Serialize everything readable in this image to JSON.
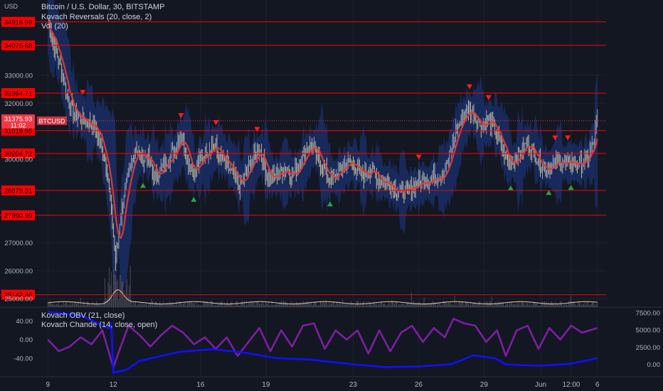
{
  "header": {
    "currency": "USD",
    "title": "Bitcoin / U.S. Dollar, 30, BITSTAMP",
    "indicators": [
      "Kovach Reversals (20, close, 2)",
      "Vol (20)"
    ],
    "lower_indicators": [
      "Kovach OBV (21, close)",
      "Kovach Chande (14, close, open)"
    ]
  },
  "colors": {
    "background": "#131722",
    "level_line": "#ff0000",
    "level_label_bg": "#ff0000",
    "ma_line": "#e53935",
    "band_fill": "#1e3a8a",
    "up_marker": "#26a641",
    "down_marker": "#ff1e1e",
    "price_tag": "#f23645",
    "obv_line": "#1010ff",
    "chande_line": "#7b1fa2",
    "axis_text": "#b2b5be"
  },
  "chart_data": {
    "type": "candlestick",
    "symbol": "BTCUSD",
    "last_price": "31375.93",
    "countdown": "11:02",
    "price_axis_ticks": [
      "33000.00",
      "32000.00",
      "30000.00",
      "27000.00",
      "26000.00",
      "25000.00"
    ],
    "price_ylim": [
      24700,
      35700
    ],
    "levels": [
      "34916.99",
      "34075.68",
      "32364.71",
      "31019.95",
      "30204.72",
      "28879.31",
      "27990.99",
      "25142.46"
    ],
    "x_ticks": [
      "9",
      "12",
      "16",
      "19",
      "23",
      "26",
      "29",
      "Jun",
      "12:00",
      "6"
    ],
    "price_series": [
      {
        "d": 0,
        "p": 34900
      },
      {
        "d": 0.3,
        "p": 34000
      },
      {
        "d": 0.6,
        "p": 33300
      },
      {
        "d": 0.9,
        "p": 32200
      },
      {
        "d": 1.2,
        "p": 31600
      },
      {
        "d": 1.5,
        "p": 31500
      },
      {
        "d": 1.8,
        "p": 31300
      },
      {
        "d": 2.1,
        "p": 31200
      },
      {
        "d": 2.4,
        "p": 30600
      },
      {
        "d": 2.7,
        "p": 29700
      },
      {
        "d": 3.0,
        "p": 27300
      },
      {
        "d": 3.1,
        "p": 26300
      },
      {
        "d": 3.3,
        "p": 27800
      },
      {
        "d": 3.5,
        "p": 28800
      },
      {
        "d": 3.7,
        "p": 29300
      },
      {
        "d": 4.0,
        "p": 30500
      },
      {
        "d": 4.3,
        "p": 30000
      },
      {
        "d": 4.6,
        "p": 30100
      },
      {
        "d": 4.9,
        "p": 29300
      },
      {
        "d": 5.2,
        "p": 29700
      },
      {
        "d": 5.5,
        "p": 30000
      },
      {
        "d": 5.8,
        "p": 30300
      },
      {
        "d": 6.1,
        "p": 31000
      },
      {
        "d": 6.4,
        "p": 30000
      },
      {
        "d": 6.7,
        "p": 29500
      },
      {
        "d": 7.0,
        "p": 30000
      },
      {
        "d": 7.3,
        "p": 30300
      },
      {
        "d": 7.6,
        "p": 30600
      },
      {
        "d": 7.9,
        "p": 30000
      },
      {
        "d": 8.2,
        "p": 29800
      },
      {
        "d": 8.5,
        "p": 29400
      },
      {
        "d": 8.8,
        "p": 29000
      },
      {
        "d": 9.1,
        "p": 29500
      },
      {
        "d": 9.4,
        "p": 30000
      },
      {
        "d": 9.7,
        "p": 30400
      },
      {
        "d": 10.0,
        "p": 29500
      },
      {
        "d": 10.3,
        "p": 29300
      },
      {
        "d": 10.6,
        "p": 29500
      },
      {
        "d": 10.9,
        "p": 29700
      },
      {
        "d": 11.2,
        "p": 29400
      },
      {
        "d": 11.5,
        "p": 29800
      },
      {
        "d": 11.8,
        "p": 30300
      },
      {
        "d": 12.1,
        "p": 30500
      },
      {
        "d": 12.4,
        "p": 30000
      },
      {
        "d": 12.7,
        "p": 29600
      },
      {
        "d": 13.0,
        "p": 29200
      },
      {
        "d": 13.3,
        "p": 29500
      },
      {
        "d": 13.6,
        "p": 29800
      },
      {
        "d": 13.9,
        "p": 29900
      },
      {
        "d": 14.2,
        "p": 29600
      },
      {
        "d": 14.5,
        "p": 29400
      },
      {
        "d": 14.8,
        "p": 29700
      },
      {
        "d": 15.1,
        "p": 29300
      },
      {
        "d": 15.4,
        "p": 29200
      },
      {
        "d": 15.7,
        "p": 29100
      },
      {
        "d": 16.0,
        "p": 28900
      },
      {
        "d": 16.3,
        "p": 28800
      },
      {
        "d": 16.6,
        "p": 28900
      },
      {
        "d": 16.9,
        "p": 29100
      },
      {
        "d": 17.2,
        "p": 29200
      },
      {
        "d": 17.5,
        "p": 29300
      },
      {
        "d": 17.8,
        "p": 29400
      },
      {
        "d": 18.1,
        "p": 29500
      },
      {
        "d": 18.4,
        "p": 30000
      },
      {
        "d": 18.7,
        "p": 31000
      },
      {
        "d": 19.0,
        "p": 31500
      },
      {
        "d": 19.3,
        "p": 31800
      },
      {
        "d": 19.6,
        "p": 31500
      },
      {
        "d": 19.9,
        "p": 31200
      },
      {
        "d": 20.2,
        "p": 31400
      },
      {
        "d": 20.5,
        "p": 31000
      },
      {
        "d": 20.8,
        "p": 30500
      },
      {
        "d": 21.1,
        "p": 29800
      },
      {
        "d": 21.4,
        "p": 30000
      },
      {
        "d": 21.7,
        "p": 30300
      },
      {
        "d": 22.0,
        "p": 30600
      },
      {
        "d": 22.3,
        "p": 30200
      },
      {
        "d": 22.6,
        "p": 29800
      },
      {
        "d": 22.9,
        "p": 29700
      },
      {
        "d": 23.2,
        "p": 29800
      },
      {
        "d": 23.5,
        "p": 29900
      },
      {
        "d": 23.8,
        "p": 29800
      },
      {
        "d": 24.1,
        "p": 29900
      },
      {
        "d": 24.4,
        "p": 29800
      },
      {
        "d": 24.7,
        "p": 30000
      },
      {
        "d": 25.0,
        "p": 30500
      },
      {
        "d": 25.2,
        "p": 31375
      }
    ],
    "obv_axis_ticks": [
      "7500.00",
      "5000.00",
      "2500.00",
      "0.00"
    ],
    "obv_ylim": [
      -1800,
      8300
    ],
    "obv_series": [
      {
        "d": 0,
        "v": 7600
      },
      {
        "d": 1.5,
        "v": 7100
      },
      {
        "d": 2.8,
        "v": 5200
      },
      {
        "d": 2.9,
        "v": 6000
      },
      {
        "d": 3.0,
        "v": -1200
      },
      {
        "d": 3.6,
        "v": -800
      },
      {
        "d": 4.2,
        "v": 500
      },
      {
        "d": 6.0,
        "v": 1800
      },
      {
        "d": 7.5,
        "v": 2200
      },
      {
        "d": 9.0,
        "v": 1700
      },
      {
        "d": 10.5,
        "v": 900
      },
      {
        "d": 12.0,
        "v": 700
      },
      {
        "d": 14.0,
        "v": 0
      },
      {
        "d": 15.5,
        "v": -400
      },
      {
        "d": 17.0,
        "v": -300
      },
      {
        "d": 18.5,
        "v": 0
      },
      {
        "d": 19.5,
        "v": 1300
      },
      {
        "d": 20.5,
        "v": 900
      },
      {
        "d": 21.0,
        "v": 0
      },
      {
        "d": 22.5,
        "v": -200
      },
      {
        "d": 24.0,
        "v": 100
      },
      {
        "d": 25.2,
        "v": 900
      }
    ],
    "chande_axis_ticks": [
      "40.00",
      "0.00",
      "-40.00"
    ],
    "chande_ylim": [
      -80,
      70
    ],
    "chande_series": [
      {
        "d": 0,
        "v": 0
      },
      {
        "d": 0.5,
        "v": -25
      },
      {
        "d": 1.0,
        "v": -15
      },
      {
        "d": 1.5,
        "v": 5
      },
      {
        "d": 2.0,
        "v": -10
      },
      {
        "d": 2.5,
        "v": 20
      },
      {
        "d": 3.0,
        "v": -60
      },
      {
        "d": 3.3,
        "v": -20
      },
      {
        "d": 3.7,
        "v": 30
      },
      {
        "d": 4.2,
        "v": 10
      },
      {
        "d": 4.7,
        "v": -15
      },
      {
        "d": 5.2,
        "v": 10
      },
      {
        "d": 5.7,
        "v": 30
      },
      {
        "d": 6.2,
        "v": 15
      },
      {
        "d": 6.7,
        "v": -10
      },
      {
        "d": 7.2,
        "v": 5
      },
      {
        "d": 7.7,
        "v": -20
      },
      {
        "d": 8.2,
        "v": 5
      },
      {
        "d": 8.7,
        "v": -35
      },
      {
        "d": 9.2,
        "v": -5
      },
      {
        "d": 9.7,
        "v": 25
      },
      {
        "d": 10.2,
        "v": -25
      },
      {
        "d": 10.7,
        "v": 20
      },
      {
        "d": 11.2,
        "v": -15
      },
      {
        "d": 11.7,
        "v": 30
      },
      {
        "d": 12.2,
        "v": 35
      },
      {
        "d": 12.7,
        "v": -20
      },
      {
        "d": 13.2,
        "v": 20
      },
      {
        "d": 13.7,
        "v": 0
      },
      {
        "d": 14.2,
        "v": 20
      },
      {
        "d": 14.7,
        "v": -30
      },
      {
        "d": 15.2,
        "v": 20
      },
      {
        "d": 15.7,
        "v": -25
      },
      {
        "d": 16.2,
        "v": 15
      },
      {
        "d": 16.7,
        "v": 30
      },
      {
        "d": 17.2,
        "v": -5
      },
      {
        "d": 17.7,
        "v": 25
      },
      {
        "d": 18.2,
        "v": 5
      },
      {
        "d": 18.6,
        "v": 45
      },
      {
        "d": 19.1,
        "v": 35
      },
      {
        "d": 19.6,
        "v": 30
      },
      {
        "d": 20.1,
        "v": -5
      },
      {
        "d": 20.6,
        "v": 20
      },
      {
        "d": 21.0,
        "v": -35
      },
      {
        "d": 21.5,
        "v": 20
      },
      {
        "d": 22.0,
        "v": 30
      },
      {
        "d": 22.5,
        "v": -20
      },
      {
        "d": 23.0,
        "v": 25
      },
      {
        "d": 23.5,
        "v": 0
      },
      {
        "d": 24.0,
        "v": 30
      },
      {
        "d": 24.5,
        "v": 15
      },
      {
        "d": 25.2,
        "v": 25
      }
    ]
  }
}
